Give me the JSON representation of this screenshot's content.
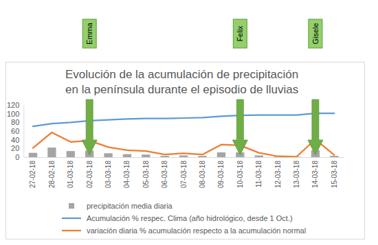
{
  "chart_data": {
    "type": "bar",
    "title": "Evolución de la acumulación de precipitación\nen la península durante el episodio de lluvias",
    "categories": [
      "27-02-18",
      "28-02-18",
      "01-03-18",
      "02-03-18",
      "03-03-18",
      "04-03-18",
      "05-03-18",
      "06-03-18",
      "07-03-18",
      "08-03-18",
      "09-03-18",
      "10-03-18",
      "11-03-18",
      "12-03-18",
      "13-03-18",
      "14-03-18",
      "15-03-18"
    ],
    "series": [
      {
        "name": "precipitación media diaria",
        "type": "bar",
        "color": "#a5a5a5",
        "values": [
          10,
          22,
          14,
          15,
          9,
          7,
          6,
          3,
          4,
          3,
          11,
          11,
          4,
          1,
          1,
          16,
          3
        ]
      },
      {
        "name": "Acumulación % respec. Clima (año hidrológico, desde 1 Oct.)",
        "type": "line",
        "color": "#5b9bd5",
        "values": [
          71,
          77,
          80,
          84,
          86,
          88,
          89,
          89,
          90,
          91,
          94,
          96,
          97,
          97,
          97,
          101,
          101
        ]
      },
      {
        "name": "variación diaria % acumulación respecto a la acumulación normal",
        "type": "line",
        "color": "#ed7d31",
        "values": [
          21,
          57,
          35,
          38,
          23,
          16,
          14,
          6,
          9,
          6,
          29,
          27,
          10,
          2,
          1,
          41,
          5
        ]
      }
    ],
    "ylim": [
      0,
      120
    ],
    "yticks": [
      0,
      20,
      40,
      60,
      80,
      100,
      120
    ],
    "grid": false,
    "legend": "bottom",
    "annotations": [
      {
        "text": "Emma",
        "x": "02-03-18"
      },
      {
        "text": "Felix",
        "x": "10-03-18"
      },
      {
        "text": "Gisele",
        "x": "14-03-18"
      }
    ]
  }
}
